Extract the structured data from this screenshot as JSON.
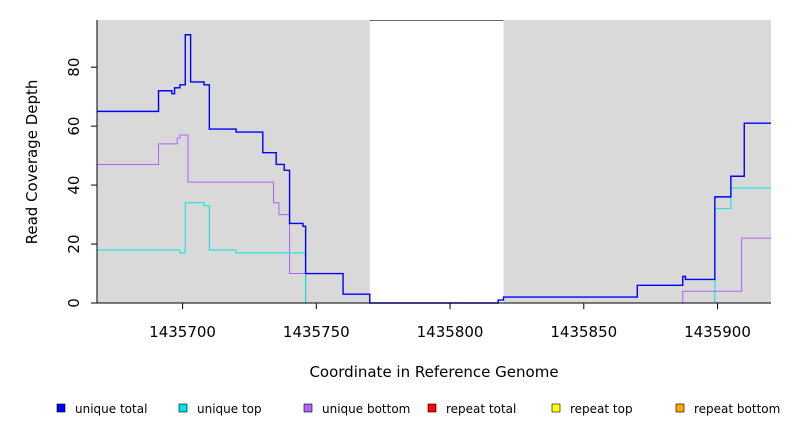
{
  "chart_data": {
    "type": "line",
    "xlabel": "Coordinate in Reference Genome",
    "ylabel": "Read Coverage Depth",
    "xlim": [
      1435668,
      1435920
    ],
    "ylim": [
      0,
      96
    ],
    "x_ticks": [
      1435700,
      1435750,
      1435800,
      1435850,
      1435900
    ],
    "y_ticks": [
      0,
      20,
      40,
      60,
      80
    ],
    "grid": false,
    "step": true,
    "background_color": "#d9d9d9",
    "highlight_region": {
      "x": [
        1435770,
        1435820
      ],
      "color": "#ffffff"
    },
    "legend_position": "bottom",
    "series": [
      {
        "name": "unique total",
        "color": "#0000ff",
        "x": [
          1435668,
          1435691,
          1435694,
          1435696,
          1435697,
          1435699,
          1435701,
          1435703,
          1435704,
          1435705,
          1435707,
          1435708,
          1435710,
          1435720,
          1435730,
          1435733,
          1435735,
          1435738,
          1435740,
          1435745,
          1435746,
          1435760,
          1435770,
          1435818,
          1435820,
          1435870,
          1435887,
          1435888,
          1435899,
          1435905,
          1435910,
          1435920
        ],
        "y": [
          65,
          72,
          72,
          71,
          73,
          74,
          91,
          75,
          75,
          75,
          75,
          74,
          59,
          58,
          51,
          51,
          47,
          45,
          27,
          26,
          10,
          3,
          0,
          1,
          2,
          6,
          9,
          8,
          36,
          43,
          61,
          61
        ]
      },
      {
        "name": "unique top",
        "color": "#00e5e5",
        "x": [
          1435668,
          1435695,
          1435699,
          1435701,
          1435708,
          1435710,
          1435720,
          1435745,
          1435746,
          1435770,
          1435818,
          1435820,
          1435870,
          1435887,
          1435899,
          1435905,
          1435920
        ],
        "y": [
          18,
          18,
          17,
          34,
          33,
          18,
          17,
          17,
          0,
          0,
          0,
          0,
          0,
          0,
          32,
          39,
          39
        ]
      },
      {
        "name": "unique bottom",
        "color": "#b060ff",
        "x": [
          1435668,
          1435691,
          1435698,
          1435699,
          1435702,
          1435730,
          1435734,
          1435736,
          1435740,
          1435746,
          1435770,
          1435887,
          1435905,
          1435909,
          1435920
        ],
        "y": [
          47,
          54,
          56,
          57,
          41,
          41,
          34,
          30,
          10,
          0,
          0,
          4,
          4,
          22,
          22
        ]
      },
      {
        "name": "repeat total",
        "color": "#ff0000",
        "x": [
          1435668,
          1435920
        ],
        "y": [
          0,
          0
        ]
      },
      {
        "name": "repeat top",
        "color": "#ffff00",
        "x": [
          1435668,
          1435920
        ],
        "y": [
          0,
          0
        ]
      },
      {
        "name": "repeat bottom",
        "color": "#ffa500",
        "x": [
          1435668,
          1435920
        ],
        "y": [
          0,
          0
        ]
      }
    ]
  }
}
